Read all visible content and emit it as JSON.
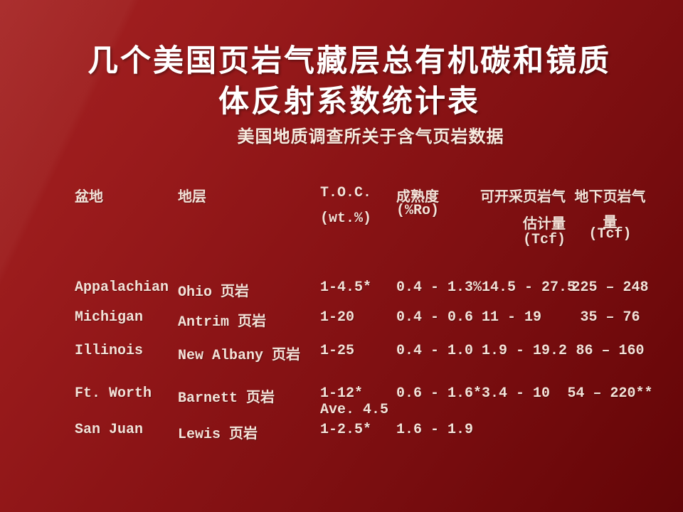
{
  "slide": {
    "title_line1": "几个美国页岩气藏层总有机碳和镜质",
    "title_line2": "体反射系数统计表",
    "subtitle": "美国地质调查所关于含气页岩数据"
  },
  "table": {
    "headers": {
      "basin": "盆地",
      "formation": "地层",
      "toc_line1": "T.O.C.",
      "toc_line2": "(wt.%)",
      "maturity_line1": "成熟度",
      "maturity_line2": "(%Ro)",
      "recoverable_line1": "可开采页岩气",
      "recoverable_line2": "估计量",
      "recoverable_line3": "(Tcf)",
      "inplace_line1": "地下页岩气",
      "inplace_line2": "量",
      "inplace_line3": "(Tcf)"
    },
    "rows": [
      {
        "basin": "Appalachian",
        "formation": "Ohio 页岩",
        "toc": "1-4.5*",
        "toc_extra": "",
        "maturity": "0.4 - 1.3%",
        "recoverable": "14.5 - 27.5",
        "inplace": "225 – 248"
      },
      {
        "basin": "Michigan",
        "formation": "Antrim 页岩",
        "toc": "1-20",
        "toc_extra": "",
        "maturity": "0.4 - 0.6",
        "recoverable": "11 - 19",
        "inplace": "35 – 76"
      },
      {
        "basin": "Illinois",
        "formation": "New Albany 页岩",
        "toc": "1-25",
        "toc_extra": "",
        "maturity": "0.4 - 1.0",
        "recoverable": "1.9 - 19.2",
        "inplace": "86 – 160"
      },
      {
        "basin": "Ft. Worth",
        "formation": "Barnett 页岩",
        "toc": "1-12*",
        "toc_extra": "Ave. 4.5",
        "maturity": "0.6 - 1.6*",
        "recoverable": "3.4 - 10",
        "inplace": "54 – 220**"
      },
      {
        "basin": "San Juan",
        "formation": "Lewis 页岩",
        "toc": "1-2.5*",
        "toc_extra": "",
        "maturity": "1.6 - 1.9",
        "recoverable": "",
        "inplace": ""
      }
    ]
  },
  "colors": {
    "background_top_left": "#a42122",
    "background_bottom_right": "#690709",
    "title_text": "#ffffff",
    "subtitle_text": "#f7ebdf",
    "table_text": "#f3e2d8"
  }
}
